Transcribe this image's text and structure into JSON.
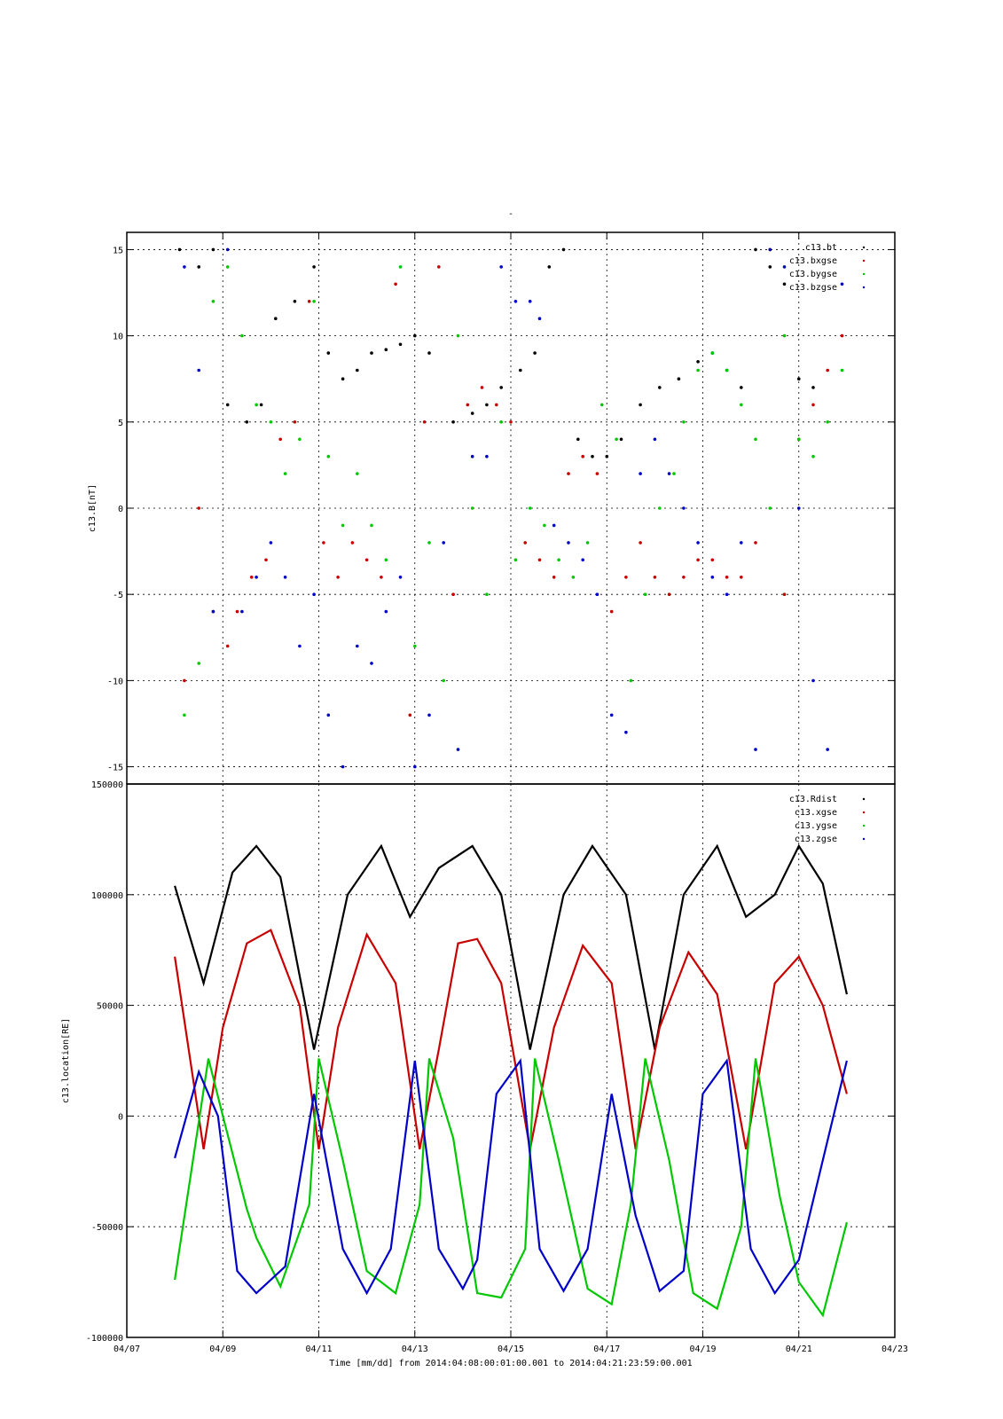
{
  "figure": {
    "title_mark": "-",
    "xlabel": "Time [mm/dd]  from 2014:04:08:00:01:00.001  to  2014:04:21:23:59:00.001",
    "x_ticks": [
      "04/07",
      "04/09",
      "04/11",
      "04/13",
      "04/15",
      "04/17",
      "04/19",
      "04/21",
      "04/23"
    ],
    "x_range_days": [
      7,
      23
    ]
  },
  "chart_data": [
    {
      "type": "scatter",
      "ylabel": "c13.B[nT]",
      "ylim": [
        -16,
        16
      ],
      "y_ticks": [
        15,
        10,
        5,
        0,
        -5,
        -10,
        -15
      ],
      "grid": true,
      "legend_position": "top-right",
      "series": [
        {
          "name": "c13.bt",
          "color": "#000000",
          "x": [
            8.1,
            8.5,
            8.8,
            9.1,
            9.5,
            9.8,
            10.1,
            10.5,
            10.9,
            11.2,
            11.5,
            11.8,
            12.1,
            12.4,
            12.7,
            13.0,
            13.3,
            13.8,
            14.2,
            14.5,
            14.8,
            15.2,
            15.5,
            15.8,
            16.1,
            16.4,
            16.7,
            17.0,
            17.3,
            17.7,
            18.1,
            18.5,
            18.9,
            19.2,
            19.5,
            19.8,
            20.1,
            20.4,
            20.7,
            21.0,
            21.3
          ],
          "y": [
            15,
            14,
            15,
            6,
            5,
            6,
            11,
            12,
            14,
            9,
            7.5,
            8,
            9,
            9.2,
            9.5,
            10,
            9,
            5,
            5.5,
            6,
            7,
            8,
            9,
            14,
            15,
            4,
            3,
            3,
            4,
            6,
            7,
            7.5,
            8.5,
            9,
            8,
            7,
            15,
            14,
            13,
            7.5,
            7
          ]
        },
        {
          "name": "c13.bxgse",
          "color": "#c80000",
          "x": [
            8.2,
            8.5,
            8.8,
            9.1,
            9.3,
            9.6,
            9.9,
            10.2,
            10.5,
            10.8,
            11.1,
            11.4,
            11.7,
            12.0,
            12.3,
            12.6,
            12.9,
            13.2,
            13.5,
            13.8,
            14.1,
            14.4,
            14.7,
            15.0,
            15.3,
            15.6,
            15.9,
            16.2,
            16.5,
            16.8,
            17.1,
            17.4,
            17.7,
            18.0,
            18.3,
            18.6,
            18.9,
            19.2,
            19.5,
            19.8,
            20.1,
            20.4,
            20.7,
            21.0,
            21.3,
            21.6,
            21.9
          ],
          "y": [
            -10,
            0,
            -6,
            -8,
            -6,
            -4,
            -3,
            4,
            5,
            12,
            -2,
            -4,
            -2,
            -3,
            -4,
            13,
            -12,
            5,
            14,
            -5,
            6,
            7,
            6,
            5,
            -2,
            -3,
            -4,
            2,
            3,
            2,
            -6,
            -4,
            -2,
            -4,
            -5,
            -4,
            -3,
            -3,
            -4,
            -4,
            -2,
            15,
            -5,
            4,
            6,
            8,
            10
          ]
        },
        {
          "name": "c13.bygse",
          "color": "#00c800",
          "x": [
            8.2,
            8.5,
            8.8,
            9.1,
            9.4,
            9.7,
            10.0,
            10.3,
            10.6,
            10.9,
            11.2,
            11.5,
            11.8,
            12.1,
            12.4,
            12.7,
            13.0,
            13.3,
            13.6,
            13.9,
            14.2,
            14.5,
            14.8,
            15.1,
            15.4,
            15.7,
            16.0,
            16.3,
            16.6,
            16.9,
            17.2,
            17.5,
            17.8,
            18.1,
            18.4,
            18.6,
            18.9,
            19.2,
            19.5,
            19.8,
            20.1,
            20.4,
            20.7,
            21.0,
            21.3,
            21.6,
            21.9
          ],
          "y": [
            -12,
            -9,
            12,
            14,
            10,
            6,
            5,
            2,
            4,
            12,
            3,
            -1,
            2,
            -1,
            -3,
            14,
            -8,
            -2,
            -10,
            10,
            0,
            -5,
            5,
            -3,
            0,
            -1,
            -3,
            -4,
            -2,
            6,
            4,
            -10,
            -5,
            0,
            2,
            5,
            8,
            9,
            8,
            6,
            4,
            0,
            10,
            4,
            3,
            5,
            8
          ]
        },
        {
          "name": "c13.bzgse",
          "color": "#0000c8",
          "x": [
            8.2,
            8.5,
            8.8,
            9.1,
            9.4,
            9.7,
            10.0,
            10.3,
            10.6,
            10.9,
            11.2,
            11.5,
            11.8,
            12.1,
            12.4,
            12.7,
            13.0,
            13.3,
            13.6,
            13.9,
            14.2,
            14.5,
            14.8,
            15.1,
            15.4,
            15.6,
            15.9,
            16.2,
            16.5,
            16.8,
            17.1,
            17.4,
            17.7,
            18.0,
            18.3,
            18.6,
            18.9,
            19.2,
            19.5,
            19.8,
            20.1,
            20.4,
            20.7,
            21.0,
            21.3,
            21.6,
            21.9
          ],
          "y": [
            14,
            8,
            -6,
            15,
            -6,
            -4,
            -2,
            -4,
            -8,
            -5,
            -12,
            -15,
            -8,
            -9,
            -6,
            -4,
            -15,
            -12,
            -2,
            -14,
            3,
            3,
            14,
            12,
            12,
            11,
            -1,
            -2,
            -3,
            -5,
            -12,
            -13,
            2,
            4,
            2,
            0,
            -2,
            -4,
            -5,
            -2,
            -14,
            15,
            14,
            0,
            -10,
            -14,
            13
          ]
        }
      ]
    },
    {
      "type": "scatter",
      "ylabel": "c13.location[RE]",
      "ylim": [
        -100000,
        150000
      ],
      "y_ticks": [
        150000,
        100000,
        50000,
        0,
        -50000,
        -100000
      ],
      "grid": true,
      "legend_position": "top-right",
      "series": [
        {
          "name": "c13.Rdist",
          "color": "#000000",
          "x": [
            8.0,
            8.6,
            9.2,
            9.7,
            10.2,
            10.9,
            11.6,
            12.3,
            12.9,
            13.5,
            14.2,
            14.8,
            15.4,
            16.1,
            16.7,
            17.4,
            18.0,
            18.6,
            19.3,
            19.9,
            20.5,
            21.0,
            21.5,
            22.0
          ],
          "y": [
            104000,
            60000,
            110000,
            122000,
            108000,
            30000,
            100000,
            122000,
            90000,
            112000,
            122000,
            100000,
            30000,
            100000,
            122000,
            100000,
            30000,
            100000,
            122000,
            90000,
            100000,
            122000,
            105000,
            55000
          ]
        },
        {
          "name": "c13.xgse",
          "color": "#c80000",
          "x": [
            8.0,
            8.6,
            9.0,
            9.5,
            10.0,
            10.6,
            11.0,
            11.4,
            12.0,
            12.6,
            13.1,
            13.5,
            13.9,
            14.3,
            14.8,
            15.4,
            15.9,
            16.5,
            17.1,
            17.6,
            18.1,
            18.7,
            19.3,
            19.9,
            20.5,
            21.0,
            21.5,
            22.0
          ],
          "y": [
            72000,
            -15000,
            40000,
            78000,
            84000,
            50000,
            -15000,
            40000,
            82000,
            60000,
            -15000,
            30000,
            78000,
            80000,
            60000,
            -15000,
            40000,
            77000,
            60000,
            -15000,
            40000,
            74000,
            55000,
            -15000,
            60000,
            72000,
            50000,
            10000
          ]
        },
        {
          "name": "c13.ygse",
          "color": "#00c800",
          "x": [
            8.0,
            8.7,
            9.0,
            9.5,
            9.7,
            10.2,
            10.8,
            11.0,
            11.5,
            12.0,
            12.6,
            13.1,
            13.3,
            13.8,
            14.3,
            14.8,
            15.3,
            15.5,
            16.0,
            16.6,
            17.1,
            17.5,
            17.8,
            18.3,
            18.8,
            19.3,
            19.8,
            20.1,
            20.6,
            21.0,
            21.5,
            22.0
          ],
          "y": [
            -74000,
            26000,
            0,
            -42000,
            -55000,
            -77000,
            -40000,
            26000,
            -20000,
            -70000,
            -80000,
            -40000,
            26000,
            -10000,
            -80000,
            -82000,
            -60000,
            26000,
            -20000,
            -78000,
            -85000,
            -40000,
            26000,
            -20000,
            -80000,
            -87000,
            -50000,
            26000,
            -36000,
            -75000,
            -90000,
            -48000
          ]
        },
        {
          "name": "c13.zgse",
          "color": "#0000c8",
          "x": [
            8.0,
            8.5,
            8.9,
            9.3,
            9.7,
            10.3,
            10.9,
            11.5,
            12.0,
            12.5,
            13.0,
            13.5,
            14.0,
            14.3,
            14.7,
            15.2,
            15.6,
            16.1,
            16.6,
            17.1,
            17.6,
            18.1,
            18.6,
            19.0,
            19.5,
            20.0,
            20.5,
            21.0,
            21.5,
            22.0
          ],
          "y": [
            -19000,
            20000,
            0,
            -70000,
            -80000,
            -68000,
            10000,
            -60000,
            -80000,
            -60000,
            25000,
            -60000,
            -78000,
            -65000,
            10000,
            25000,
            -60000,
            -79000,
            -60000,
            10000,
            -45000,
            -79000,
            -70000,
            10000,
            25000,
            -60000,
            -80000,
            -65000,
            -20000,
            25000
          ]
        }
      ]
    }
  ]
}
